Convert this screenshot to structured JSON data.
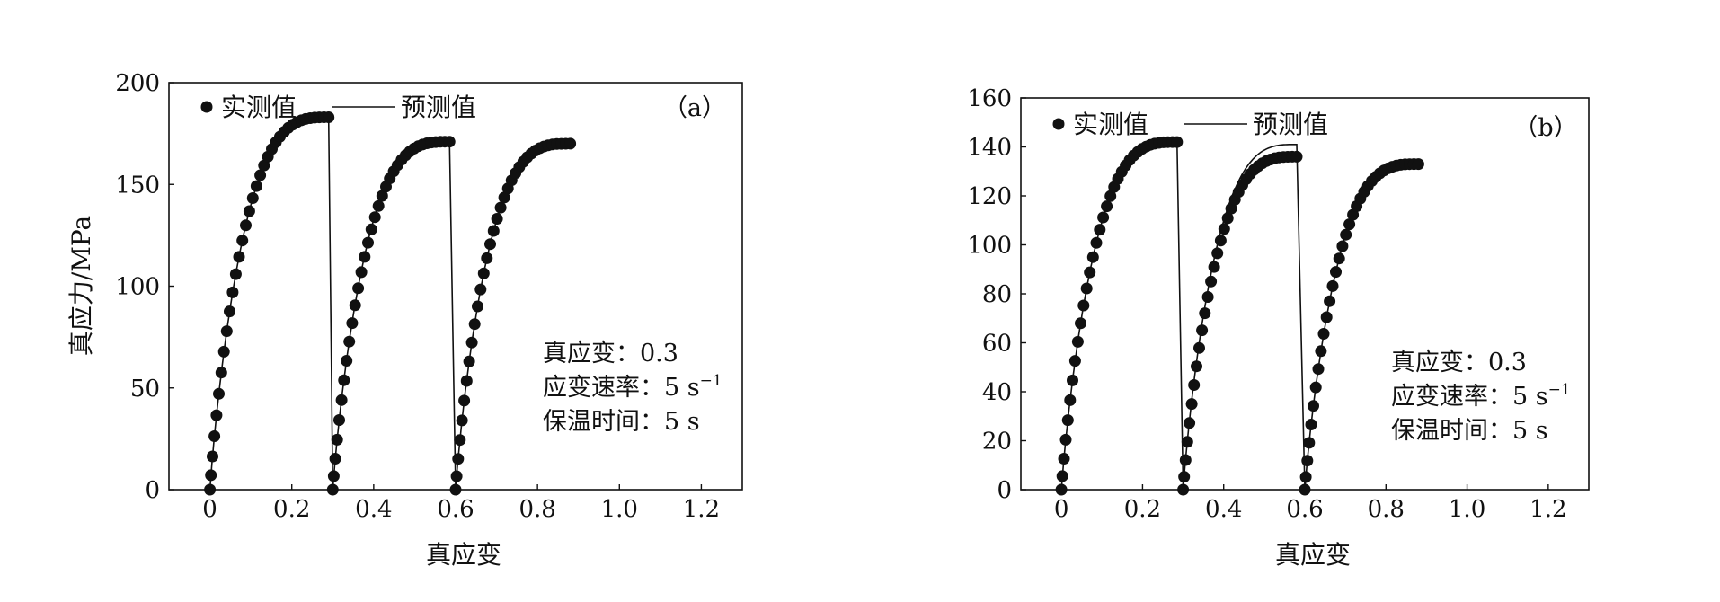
{
  "chart_data": [
    {
      "id": "a",
      "type": "scatter",
      "panel_label": "（a）",
      "xlabel": "真应变",
      "ylabel": "真应力/MPa",
      "xlim": [
        -0.1,
        1.3
      ],
      "ylim": [
        0,
        200
      ],
      "xticks": [
        0,
        0.2,
        0.4,
        0.6,
        0.8,
        1.0,
        1.2
      ],
      "xtick_labels": [
        "0",
        "0.2",
        "0.4",
        "0.6",
        "0.8",
        "1.0",
        "1.2"
      ],
      "yticks": [
        0,
        50,
        100,
        150,
        200
      ],
      "ytick_labels": [
        "0",
        "50",
        "100",
        "150",
        "200"
      ],
      "legend": {
        "measured": "实测值",
        "predicted": "预测值"
      },
      "annotation": {
        "line1": "真应变：0.3",
        "line2_main": "应变速率：5 s",
        "line2_sup": "−1",
        "line3": "保温时间：5 s"
      },
      "series": [
        {
          "name": "实测值",
          "style": "markers",
          "segments": [
            {
              "eps0": 0.0,
              "eps1": 0.29,
              "peak": 183
            },
            {
              "eps0": 0.3,
              "eps1": 0.585,
              "peak": 171
            },
            {
              "eps0": 0.6,
              "eps1": 0.88,
              "peak": 170
            }
          ]
        },
        {
          "name": "预测值",
          "style": "line",
          "segments": [
            {
              "eps0": 0.0,
              "eps1": 0.29,
              "peak": 183
            },
            {
              "eps0": 0.3,
              "eps1": 0.585,
              "peak": 172
            },
            {
              "eps0": 0.6,
              "eps1": 0.88,
              "peak": 170
            }
          ]
        }
      ],
      "unload_drops": [
        [
          0.29,
          183,
          0.3,
          0
        ],
        [
          0.585,
          171,
          0.6,
          0
        ]
      ]
    },
    {
      "id": "b",
      "type": "scatter",
      "panel_label": "（b）",
      "xlabel": "真应变",
      "ylabel": "",
      "xlim": [
        -0.1,
        1.3
      ],
      "ylim": [
        0,
        160
      ],
      "xticks": [
        0,
        0.2,
        0.4,
        0.6,
        0.8,
        1.0,
        1.2
      ],
      "xtick_labels": [
        "0",
        "0.2",
        "0.4",
        "0.6",
        "0.8",
        "1.0",
        "1.2"
      ],
      "yticks": [
        0,
        20,
        40,
        60,
        80,
        100,
        120,
        140,
        160
      ],
      "ytick_labels": [
        "0",
        "20",
        "40",
        "60",
        "80",
        "100",
        "120",
        "140",
        "160"
      ],
      "legend": {
        "measured": "实测值",
        "predicted": "预测值"
      },
      "annotation": {
        "line1": "真应变：0.3",
        "line2_main": "应变速率：5 s",
        "line2_sup": "−1",
        "line3": "保温时间：5 s"
      },
      "series": [
        {
          "name": "实测值",
          "style": "markers",
          "segments": [
            {
              "eps0": 0.0,
              "eps1": 0.285,
              "peak": 142
            },
            {
              "eps0": 0.3,
              "eps1": 0.58,
              "peak": 136
            },
            {
              "eps0": 0.6,
              "eps1": 0.88,
              "peak": 133
            }
          ]
        },
        {
          "name": "预测值",
          "style": "line",
          "segments": [
            {
              "eps0": 0.0,
              "eps1": 0.285,
              "peak": 142
            },
            {
              "eps0": 0.3,
              "eps1": 0.58,
              "peak": 141
            },
            {
              "eps0": 0.6,
              "eps1": 0.88,
              "peak": 133
            }
          ]
        }
      ],
      "unload_drops": [
        [
          0.285,
          142,
          0.3,
          0
        ],
        [
          0.58,
          136,
          0.6,
          0
        ]
      ]
    }
  ]
}
